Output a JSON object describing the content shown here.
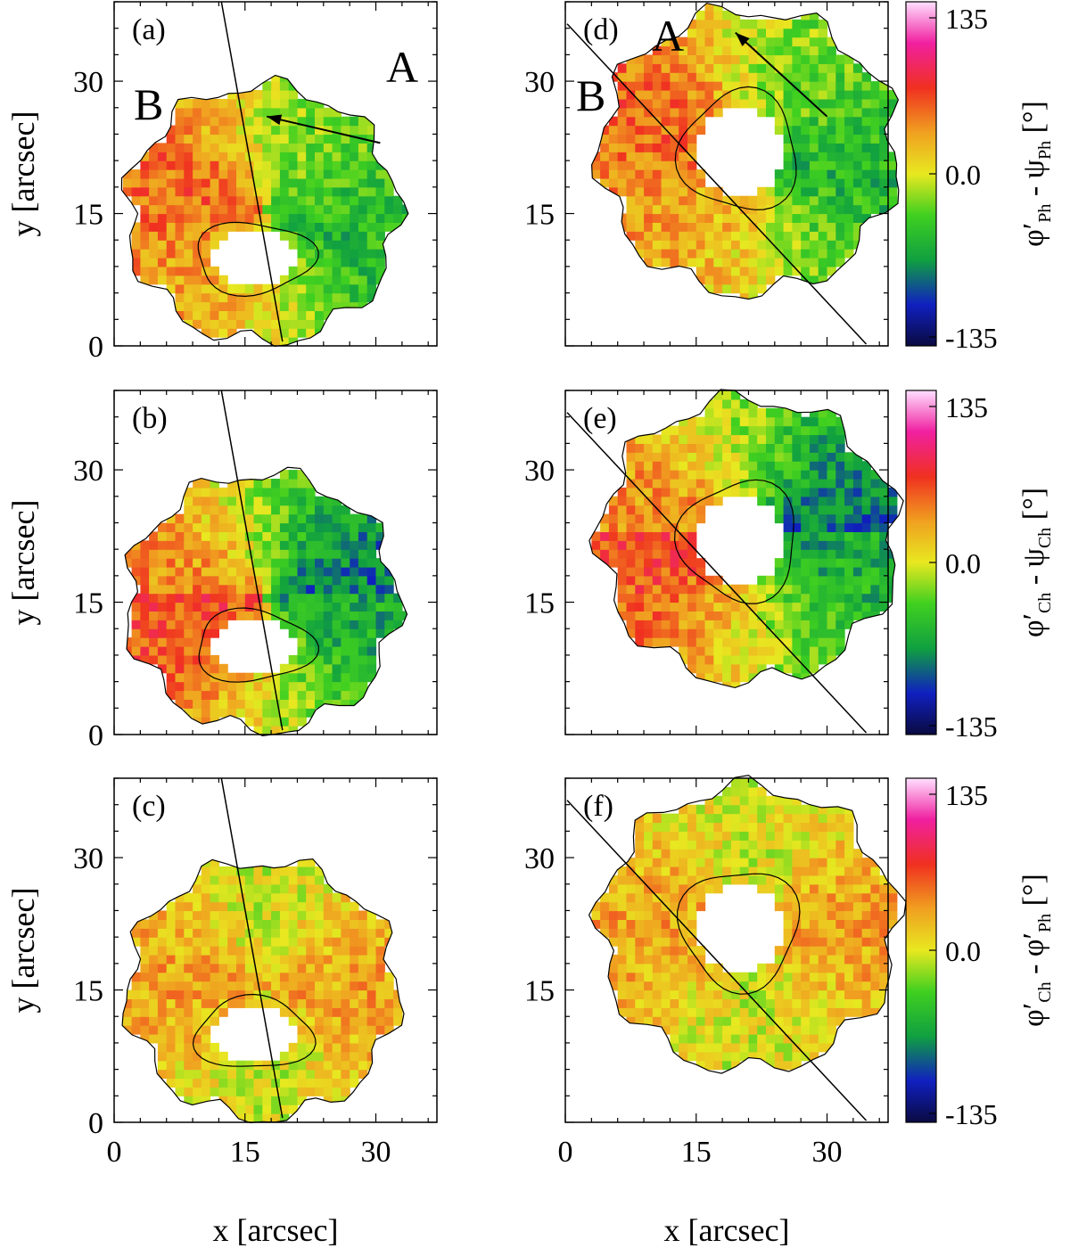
{
  "chart_data": [
    {
      "type": "heatmap",
      "panel_label": "(a)",
      "region_labels": [
        "A",
        "B"
      ],
      "has_arrow": true,
      "cut_line": "near-vertical",
      "xlabel": "",
      "ylabel": "y [arcsec]",
      "x_ticks": [],
      "y_ticks": [
        "0",
        "15",
        "30"
      ],
      "xlim": [
        0,
        37
      ],
      "ylim": [
        0,
        39
      ],
      "colorbar": null,
      "values_desc": "angle difference map"
    },
    {
      "type": "heatmap",
      "panel_label": "(b)",
      "region_labels": [],
      "has_arrow": false,
      "cut_line": "near-vertical",
      "xlabel": "",
      "ylabel": "y [arcsec]",
      "x_ticks": [],
      "y_ticks": [
        "0",
        "15",
        "30"
      ],
      "xlim": [
        0,
        37
      ],
      "ylim": [
        0,
        39
      ],
      "colorbar": null
    },
    {
      "type": "heatmap",
      "panel_label": "(c)",
      "region_labels": [],
      "has_arrow": false,
      "cut_line": "near-vertical",
      "xlabel": "x [arcsec]",
      "ylabel": "y [arcsec]",
      "x_ticks": [
        "0",
        "15",
        "30"
      ],
      "y_ticks": [
        "0",
        "15",
        "30"
      ],
      "xlim": [
        0,
        37
      ],
      "ylim": [
        0,
        39
      ],
      "colorbar": null
    },
    {
      "type": "heatmap",
      "panel_label": "(d)",
      "region_labels": [
        "A",
        "B"
      ],
      "has_arrow": true,
      "cut_line": "diagonal",
      "xlabel": "",
      "ylabel": "",
      "x_ticks": [],
      "y_ticks": [
        "15",
        "30"
      ],
      "xlim": [
        0,
        37
      ],
      "ylim": [
        0,
        39
      ],
      "colorbar": {
        "ticks": [
          "135",
          "0.0",
          "-135"
        ],
        "label_main": "φ′",
        "label_sub1": "Ph",
        "label_mid": " - ψ",
        "label_sub2": "Ph",
        "label_unit": " [°]"
      }
    },
    {
      "type": "heatmap",
      "panel_label": "(e)",
      "region_labels": [],
      "has_arrow": false,
      "cut_line": "diagonal",
      "xlabel": "",
      "ylabel": "",
      "x_ticks": [],
      "y_ticks": [
        "15",
        "30"
      ],
      "xlim": [
        0,
        37
      ],
      "ylim": [
        0,
        39
      ],
      "colorbar": {
        "ticks": [
          "135",
          "0.0",
          "-135"
        ],
        "label_main": "φ′",
        "label_sub1": "Ch",
        "label_mid": " - ψ",
        "label_sub2": "Ch",
        "label_unit": " [°]"
      }
    },
    {
      "type": "heatmap",
      "panel_label": "(f)",
      "region_labels": [],
      "has_arrow": false,
      "cut_line": "diagonal",
      "xlabel": "x [arcsec]",
      "ylabel": "",
      "x_ticks": [
        "0",
        "15",
        "30"
      ],
      "y_ticks": [
        "15",
        "30"
      ],
      "xlim": [
        0,
        37
      ],
      "ylim": [
        0,
        39
      ],
      "colorbar": {
        "ticks": [
          "135",
          "0.0",
          "-135"
        ],
        "label_main": "φ′",
        "label_sub1": "Ch",
        "label_mid": " - φ′",
        "label_sub2": "Ph",
        "label_unit": " [°]"
      }
    }
  ],
  "colors": {
    "colormap": [
      "#0a0a40",
      "#1020c0",
      "#10a040",
      "#40d020",
      "#a8e020",
      "#f0e020",
      "#f0a020",
      "#f04020",
      "#f02080",
      "#f0a0e0",
      "#ffe0ff"
    ],
    "umbra": "#ffffff",
    "frame": "#000000"
  }
}
